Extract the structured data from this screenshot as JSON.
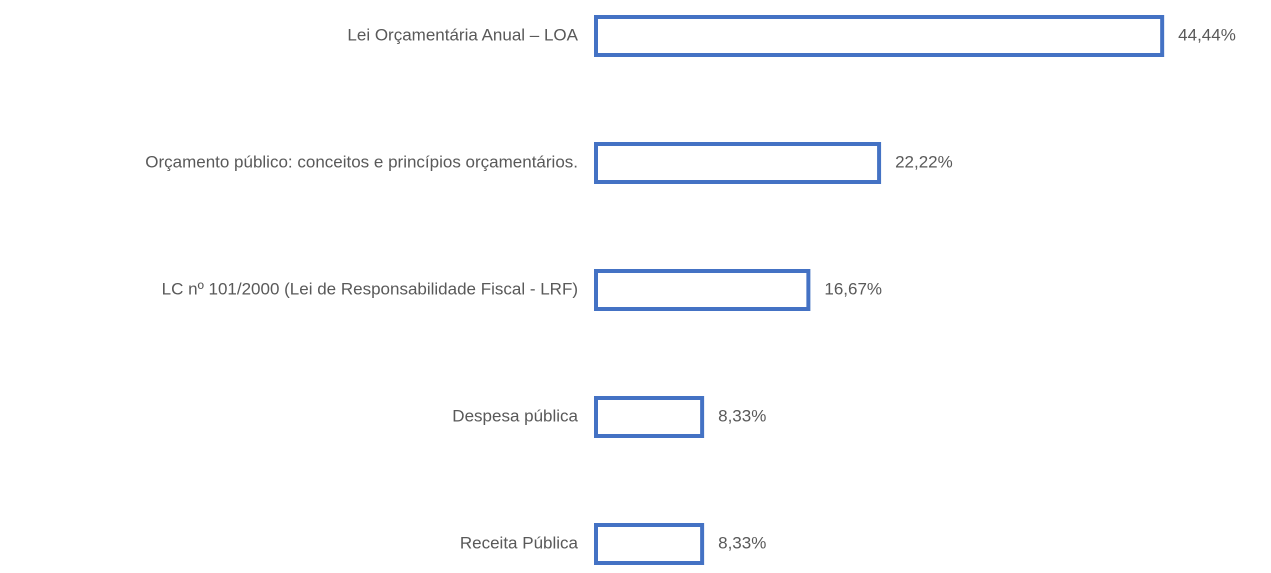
{
  "chart_data": {
    "type": "bar",
    "orientation": "horizontal",
    "categories": [
      "Lei Orçamentária Anual – LOA",
      "Orçamento público: conceitos e princípios orçamentários.",
      "LC nº 101/2000 (Lei de Responsabilidade Fiscal - LRF)",
      "Despesa pública",
      "Receita Pública"
    ],
    "values": [
      44.44,
      22.22,
      16.67,
      8.33,
      8.33
    ],
    "value_labels": [
      "44,44%",
      "22,22%",
      "16,67%",
      "8,33%",
      "8,33%"
    ],
    "color": "#4472c4"
  }
}
